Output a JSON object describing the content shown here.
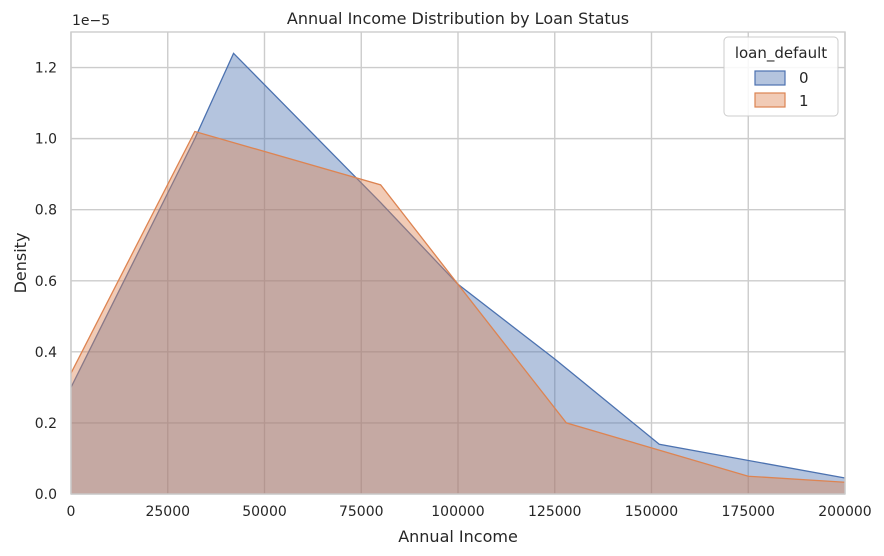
{
  "chart_data": {
    "type": "area",
    "title": "Annual Income Distribution by Loan Status",
    "xlabel": "Annual Income",
    "ylabel": "Density",
    "y_offset_label": "1e−5",
    "xlim": [
      0,
      200000
    ],
    "ylim": [
      0,
      1.3
    ],
    "x_ticks": [
      0,
      25000,
      50000,
      75000,
      100000,
      125000,
      150000,
      175000,
      200000
    ],
    "y_ticks": [
      0.0,
      0.2,
      0.4,
      0.6,
      0.8,
      1.0,
      1.2
    ],
    "grid": true,
    "legend": {
      "title": "loan_default",
      "position": "top-right"
    },
    "series": [
      {
        "name": "0",
        "color": "#4c72b0",
        "x": [
          0,
          32000,
          42000,
          80000,
          100000,
          125000,
          152000,
          200000
        ],
        "y": [
          0.3,
          1.0,
          1.24,
          0.82,
          0.59,
          0.38,
          0.14,
          0.045
        ]
      },
      {
        "name": "1",
        "color": "#dd8452",
        "x": [
          0,
          32000,
          80000,
          100000,
          128000,
          175000,
          200000
        ],
        "y": [
          0.34,
          1.02,
          0.87,
          0.59,
          0.2,
          0.05,
          0.033
        ]
      }
    ]
  }
}
